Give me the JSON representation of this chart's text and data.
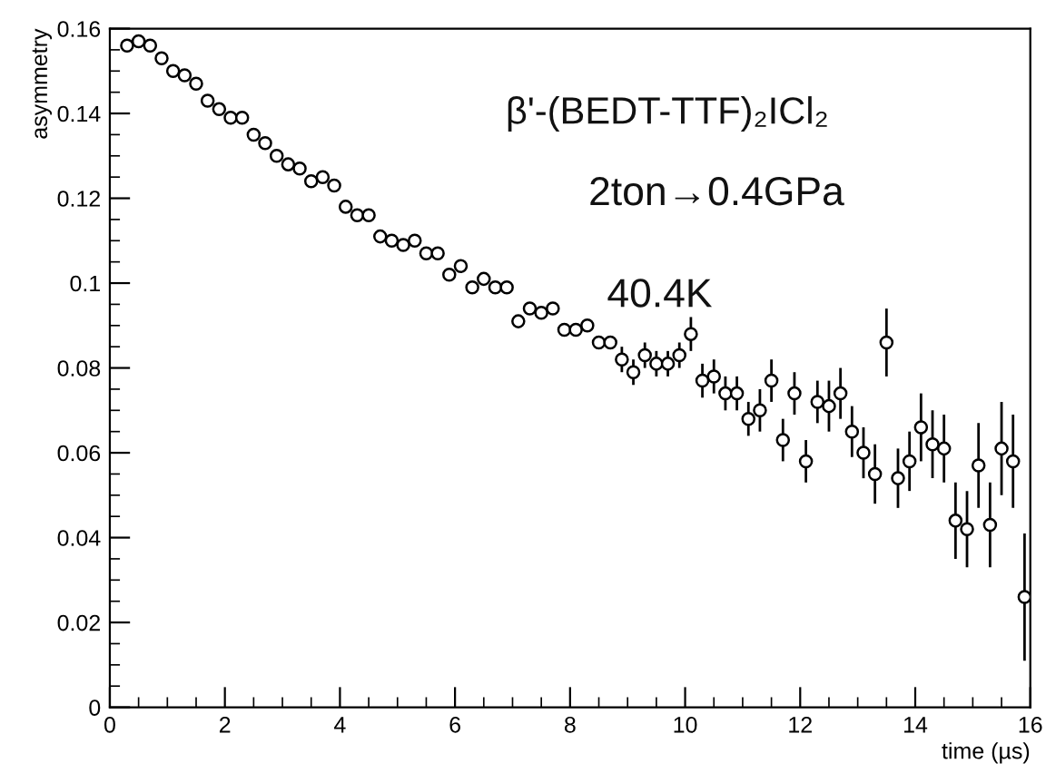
{
  "chart_data": {
    "type": "scatter",
    "xlabel": "time (µs)",
    "ylabel": "asymmetry",
    "annotations": [
      "β'-(BEDT-TTF)₂ICl₂",
      "2ton→0.4GPa",
      "40.4K"
    ],
    "x": [
      0.3,
      0.5,
      0.7,
      0.9,
      1.1,
      1.3,
      1.5,
      1.7,
      1.9,
      2.1,
      2.3,
      2.5,
      2.7,
      2.9,
      3.1,
      3.3,
      3.5,
      3.7,
      3.9,
      4.1,
      4.3,
      4.5,
      4.7,
      4.9,
      5.1,
      5.3,
      5.5,
      5.7,
      5.9,
      6.1,
      6.3,
      6.5,
      6.7,
      6.9,
      7.1,
      7.3,
      7.5,
      7.7,
      7.9,
      8.1,
      8.3,
      8.5,
      8.7,
      8.9,
      9.1,
      9.3,
      9.5,
      9.7,
      9.9,
      10.1,
      10.3,
      10.5,
      10.7,
      10.9,
      11.1,
      11.3,
      11.5,
      11.7,
      11.9,
      12.1,
      12.3,
      12.5,
      12.7,
      12.9,
      13.1,
      13.3,
      13.5,
      13.7,
      13.9,
      14.1,
      14.3,
      14.5,
      14.7,
      14.9,
      15.1,
      15.3,
      15.5,
      15.7,
      15.9
    ],
    "series": [
      {
        "color": "#000000",
        "values": [
          0.156,
          0.157,
          0.156,
          0.153,
          0.15,
          0.149,
          0.147,
          0.143,
          0.141,
          0.139,
          0.139,
          0.135,
          0.133,
          0.13,
          0.128,
          0.127,
          0.124,
          0.125,
          0.123,
          0.118,
          0.116,
          0.116,
          0.111,
          0.11,
          0.109,
          0.11,
          0.107,
          0.107,
          0.102,
          0.104,
          0.099,
          0.101,
          0.099,
          0.099,
          0.091,
          0.094,
          0.093,
          0.094,
          0.089,
          0.089,
          0.09,
          0.086,
          0.086,
          0.082,
          0.079,
          0.083,
          0.081,
          0.081,
          0.083,
          0.088,
          0.077,
          0.078,
          0.074,
          0.074,
          0.068,
          0.07,
          0.077,
          0.063,
          0.074,
          0.058,
          0.072,
          0.071,
          0.074,
          0.065,
          0.06,
          0.055,
          0.086,
          0.054,
          0.058,
          0.066,
          0.062,
          0.061,
          0.044,
          0.042,
          0.057,
          0.043,
          0.061,
          0.058,
          0.026
        ],
        "errors": [
          null,
          null,
          null,
          null,
          null,
          null,
          null,
          null,
          null,
          null,
          null,
          null,
          null,
          null,
          null,
          null,
          null,
          null,
          null,
          null,
          null,
          null,
          null,
          null,
          null,
          null,
          null,
          null,
          null,
          null,
          null,
          null,
          null,
          null,
          null,
          null,
          null,
          null,
          null,
          null,
          null,
          null,
          null,
          0.003,
          0.003,
          0.003,
          0.003,
          0.003,
          0.003,
          0.004,
          0.004,
          0.004,
          0.004,
          0.004,
          0.004,
          0.005,
          0.005,
          0.005,
          0.005,
          0.005,
          0.005,
          0.006,
          0.006,
          0.006,
          0.006,
          0.007,
          0.008,
          0.007,
          0.007,
          0.008,
          0.008,
          0.008,
          0.009,
          0.009,
          0.01,
          0.01,
          0.011,
          0.011,
          0.015
        ]
      }
    ],
    "xlim": [
      0,
      16
    ],
    "ylim": [
      0,
      0.16
    ],
    "xticks": [
      0,
      2,
      4,
      6,
      8,
      10,
      12,
      14,
      16
    ],
    "yticks": [
      0,
      0.02,
      0.04,
      0.06,
      0.08,
      0.1,
      0.12,
      0.14,
      0.16
    ],
    "marker": "circle",
    "grid": false,
    "legend": false
  }
}
